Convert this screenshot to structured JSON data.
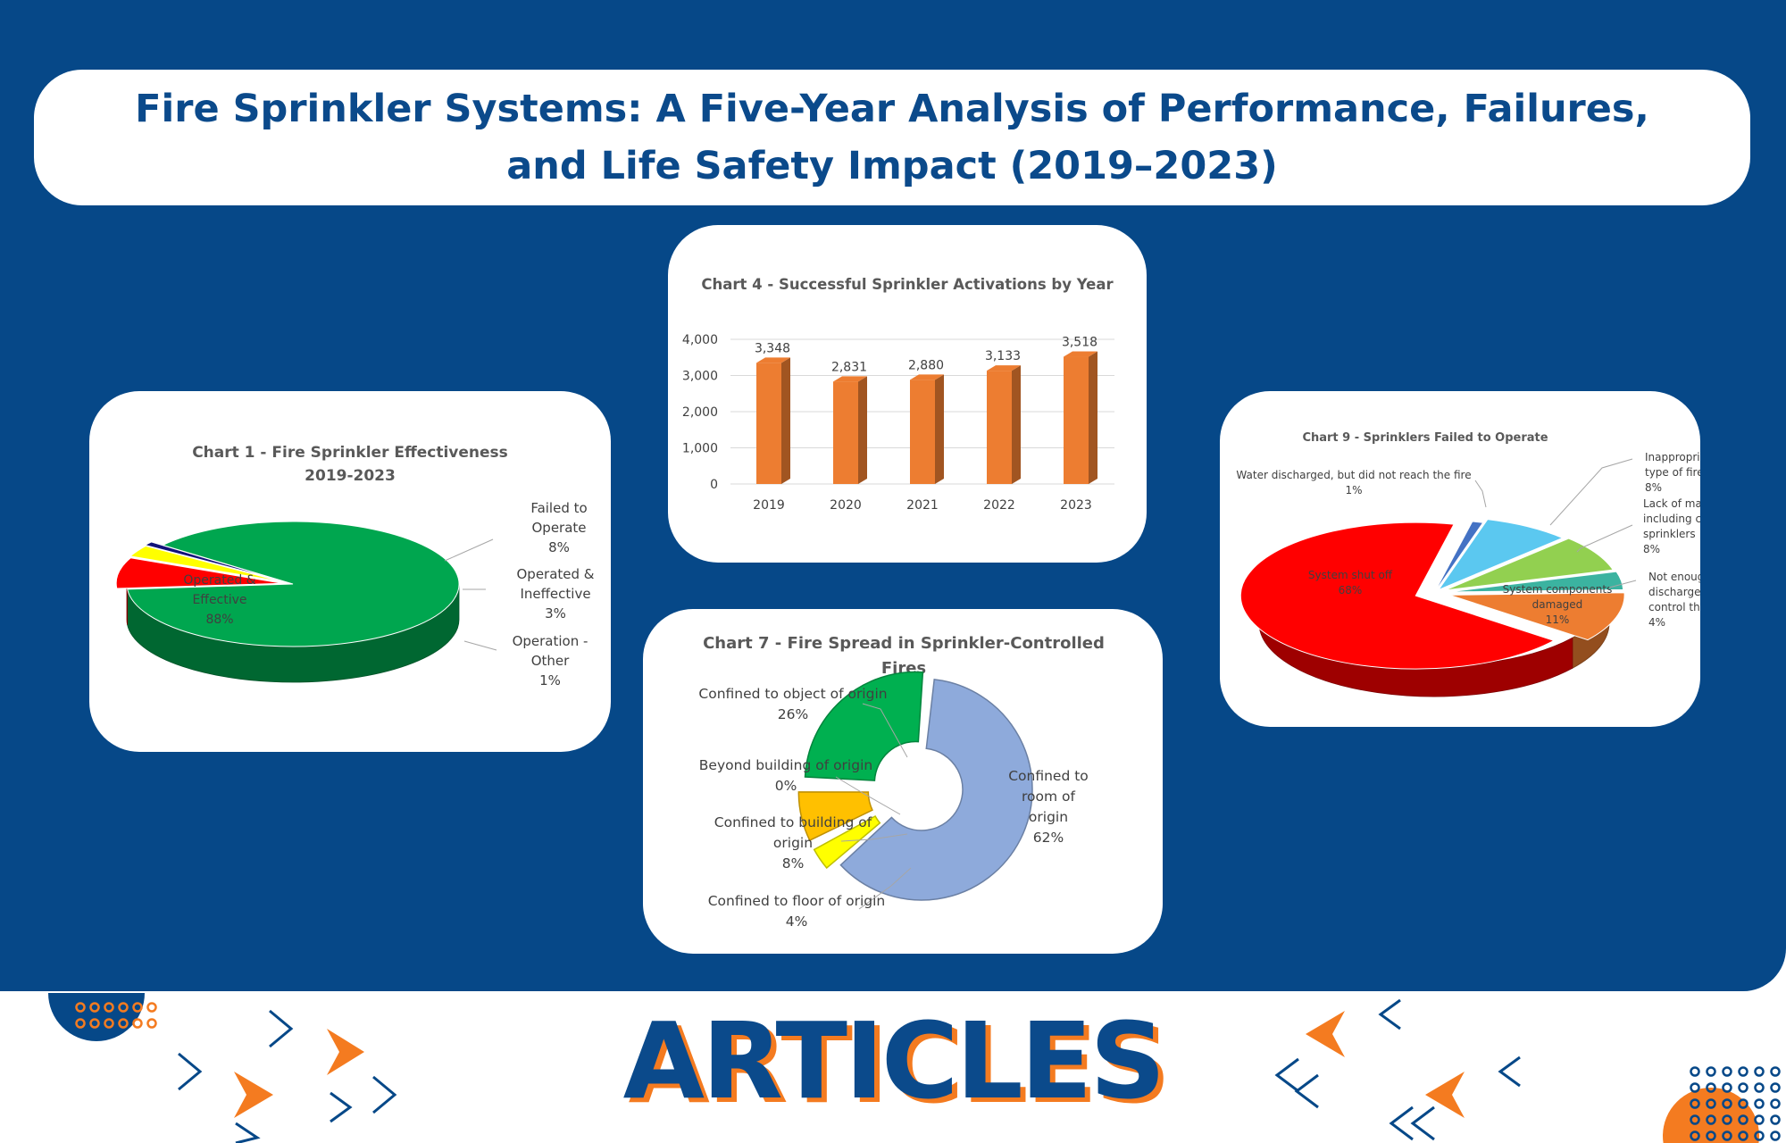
{
  "page": {
    "title": "Fire Sprinkler Systems: A Five-Year Analysis of Performance, Failures, and Life Safety Impact (2019–2023)",
    "footer": "ARTICLES"
  },
  "chart_data": [
    {
      "id": "chart1",
      "type": "pie",
      "title": [
        "Chart 1 - Fire Sprinkler Effectiveness",
        "2019-2023"
      ],
      "slices": [
        {
          "label": [
            "Operated &",
            "Effective",
            "88%"
          ],
          "value": 88,
          "color": "#00a64f"
        },
        {
          "label": [
            "Failed to",
            "Operate",
            "8%"
          ],
          "value": 8,
          "color": "#ff0000"
        },
        {
          "label": [
            "Operated &",
            "Ineffective",
            "3%"
          ],
          "value": 3,
          "color": "#ffff00"
        },
        {
          "label": [
            "Operation -",
            "Other",
            "1%"
          ],
          "value": 1,
          "color": "#12137a"
        }
      ]
    },
    {
      "id": "chart4",
      "type": "bar",
      "title": "Chart 4 - Successful Sprinkler Activations by Year",
      "categories": [
        "2019",
        "2020",
        "2021",
        "2022",
        "2023"
      ],
      "values": [
        3348,
        2831,
        2880,
        3133,
        3518
      ],
      "value_labels": [
        "3,348",
        "2,831",
        "2,880",
        "3,133",
        "3,518"
      ],
      "y_ticks": [
        "4,000",
        "3,000",
        "2,000",
        "1,000",
        "0"
      ],
      "ylim": [
        0,
        4000
      ],
      "color": "#ed7d31"
    },
    {
      "id": "chart7",
      "type": "pie",
      "title": [
        "Chart 7 - Fire Spread in Sprinkler-Controlled",
        "Fires"
      ],
      "slices": [
        {
          "label": [
            "Confined to",
            "room of",
            "origin",
            "62%"
          ],
          "value": 62,
          "color": "#8eaadb"
        },
        {
          "label": [
            "Confined to floor of origin",
            "4%"
          ],
          "value": 4,
          "color": "#ffff00"
        },
        {
          "label": [
            "Confined to building of",
            "origin",
            "8%"
          ],
          "value": 8,
          "color": "#ffc000"
        },
        {
          "label": [
            "Beyond building of origin",
            "0%"
          ],
          "value": 0,
          "color": "#7f7f7f"
        },
        {
          "label": [
            "Confined to object of origin",
            "26%"
          ],
          "value": 26,
          "color": "#00b050"
        }
      ]
    },
    {
      "id": "chart9",
      "type": "pie",
      "title": "Chart 9 - Sprinklers Failed to Operate",
      "slices": [
        {
          "label": [
            "System shut off",
            "68%"
          ],
          "value": 68,
          "color": "#ff0000"
        },
        {
          "label": [
            "Water discharged, but did not reach the fire",
            "1%"
          ],
          "value": 1,
          "color": "#4472c4"
        },
        {
          "label": [
            "Inappropriate system for",
            "type of fire",
            "8%"
          ],
          "value": 8,
          "color": "#5bc8f0"
        },
        {
          "label": [
            "Lack of maintena",
            "including corrosi",
            "sprinklers",
            "8%"
          ],
          "value": 8,
          "color": "#92d050"
        },
        {
          "label": [
            "Not enough wat",
            "discharged to",
            "control the fir",
            "4%"
          ],
          "value": 4,
          "color": "#3bb3a0"
        },
        {
          "label": [
            "System components",
            "damaged",
            "11%"
          ],
          "value": 11,
          "color": "#ed7d31"
        }
      ]
    }
  ]
}
